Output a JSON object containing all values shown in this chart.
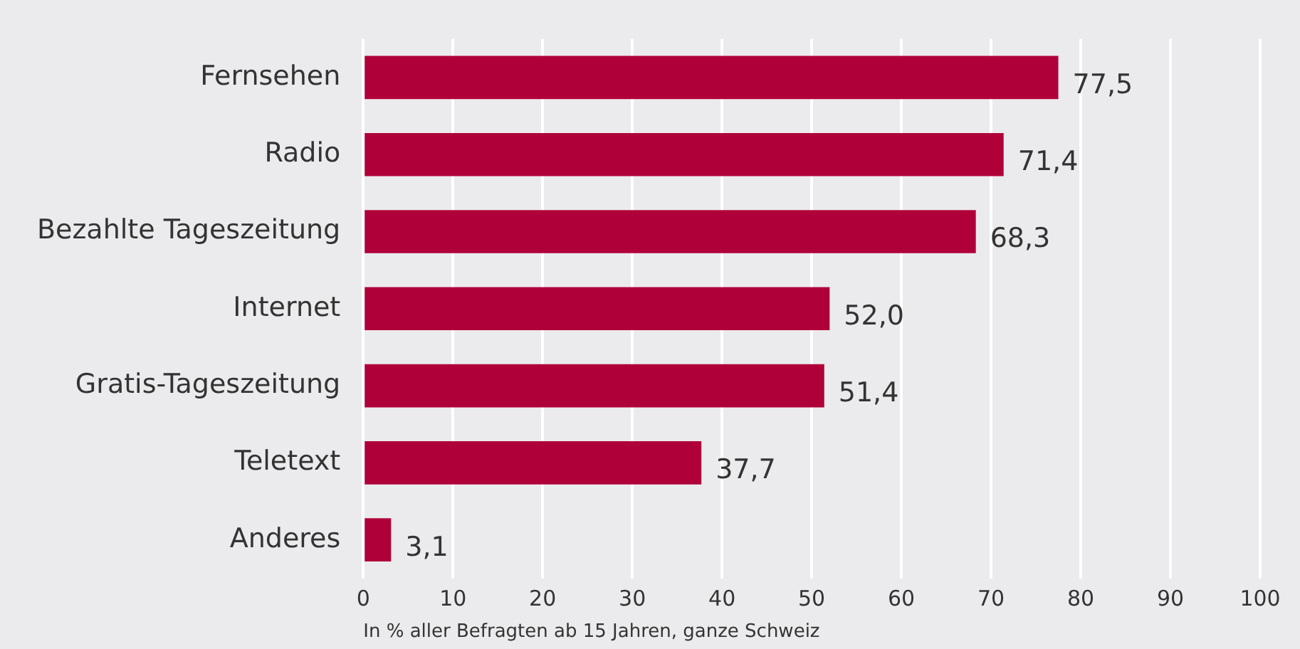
{
  "chart_data": {
    "type": "bar",
    "orientation": "horizontal",
    "xlabel": "In % aller Befragten ab 15 Jahren, ganze Schweiz",
    "categories": [
      "Fernsehen",
      "Radio",
      "Bezahlte Tageszeitung",
      "Internet",
      "Gratis-Tageszeitung",
      "Teletext",
      "Anderes"
    ],
    "values": [
      77.5,
      71.4,
      68.3,
      52.0,
      51.4,
      37.7,
      3.1
    ],
    "value_labels": [
      "77,5",
      "71,4",
      "68,3",
      "52,0",
      "51,4",
      "37,7",
      "3,1"
    ],
    "color": "#b0003a",
    "xlim": [
      0,
      100
    ],
    "xticks": [
      0,
      10,
      20,
      30,
      40,
      50,
      60,
      70,
      80,
      90,
      100
    ],
    "grid": "x",
    "legend": false
  }
}
